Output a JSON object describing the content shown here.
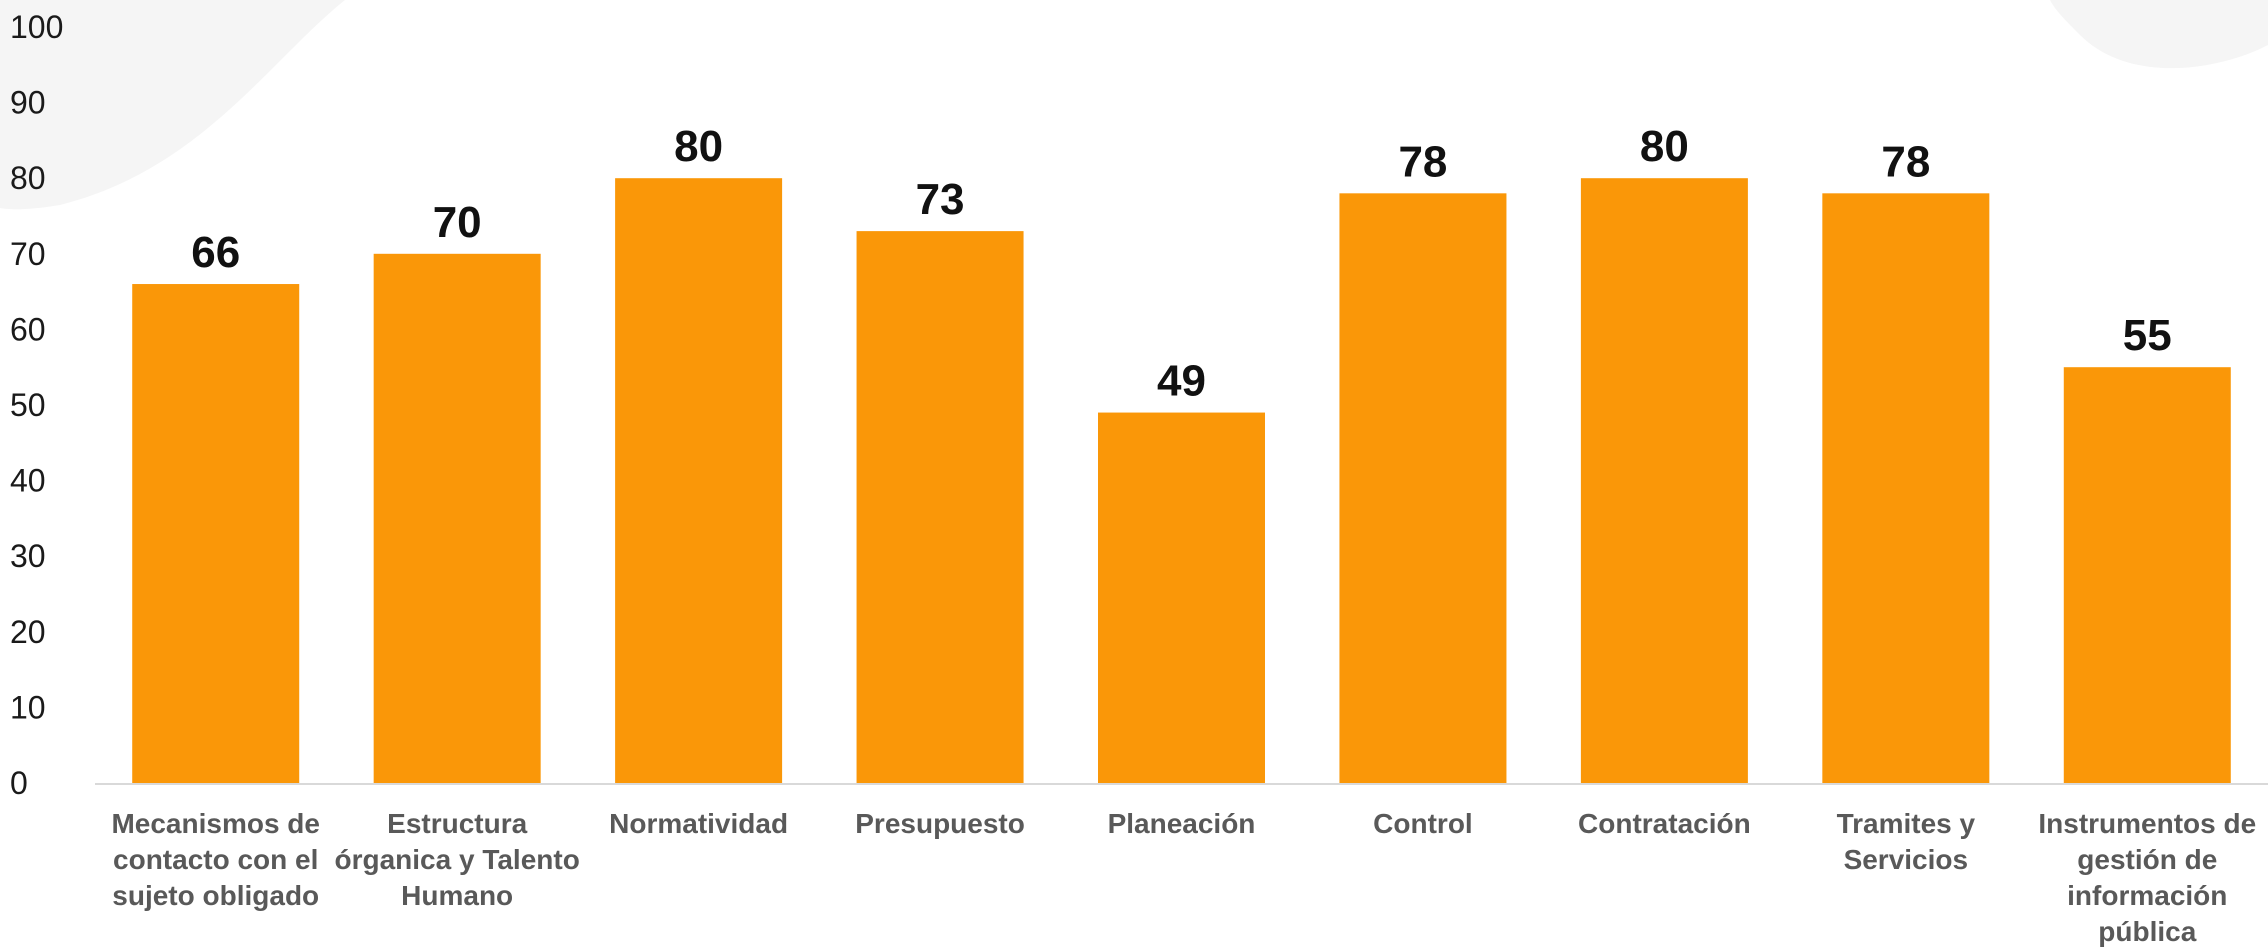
{
  "colors": {
    "bar": "#FA9708",
    "axis_line": "#D9D9D9",
    "value_label": "#111111",
    "category_label": "#595959",
    "tick_label": "#1A1A1A",
    "background_swoosh": "#F5F5F5"
  },
  "chart_data": {
    "type": "bar",
    "title": "",
    "xlabel": "",
    "ylabel": "",
    "ylim": [
      0,
      100
    ],
    "yticks": [
      0,
      10,
      20,
      30,
      40,
      50,
      60,
      70,
      80,
      90,
      100
    ],
    "grid": false,
    "legend": "none",
    "categories": [
      [
        "Mecanismos de",
        "contacto con el",
        "sujeto obligado"
      ],
      [
        "Estructura",
        "órganica y Talento",
        "Humano"
      ],
      [
        "Normatividad"
      ],
      [
        "Presupuesto"
      ],
      [
        "Planeación"
      ],
      [
        "Control"
      ],
      [
        "Contratación"
      ],
      [
        "Tramites y",
        "Servicios"
      ],
      [
        "Instrumentos de",
        "gestión de",
        "información",
        "pública"
      ]
    ],
    "values": [
      66,
      70,
      80,
      73,
      49,
      78,
      80,
      78,
      55
    ],
    "value_labels": [
      "66",
      "70",
      "80",
      "73",
      "49",
      "78",
      "80",
      "78",
      "55"
    ]
  }
}
